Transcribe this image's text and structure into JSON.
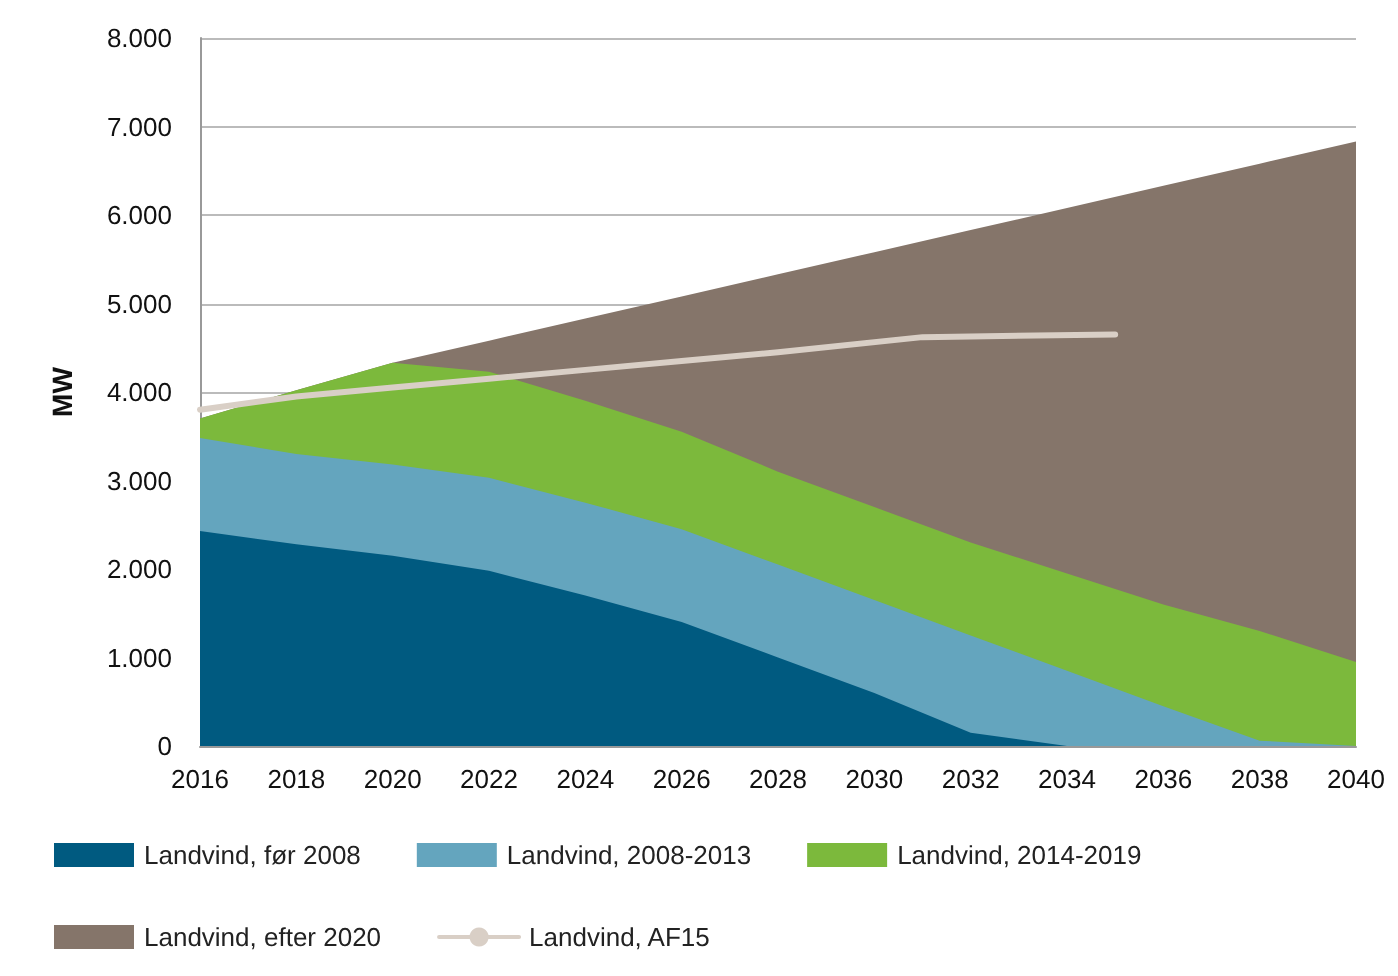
{
  "chart_data": {
    "type": "area",
    "stacked": true,
    "ylabel": "MW",
    "x": [
      2016,
      2018,
      2020,
      2022,
      2024,
      2026,
      2028,
      2030,
      2032,
      2034,
      2036,
      2038,
      2040
    ],
    "series": [
      {
        "name": "Landvind, før 2008",
        "color": "#005a80",
        "values": [
          2430,
          2280,
          2150,
          1980,
          1700,
          1400,
          1000,
          600,
          150,
          0,
          0,
          0,
          0
        ]
      },
      {
        "name": "Landvind, 2008-2013",
        "color": "#64a5be",
        "values": [
          1050,
          1020,
          1030,
          1050,
          1050,
          1050,
          1050,
          1050,
          1100,
          850,
          450,
          60,
          0
        ]
      },
      {
        "name": "Landvind, 2014-2019",
        "color": "#7cb93c",
        "values": [
          220,
          720,
          1150,
          1200,
          1150,
          1100,
          1050,
          1050,
          1050,
          1100,
          1150,
          1240,
          950
        ]
      },
      {
        "name": "Landvind, efter 2020",
        "color": "#85756a",
        "values": [
          0,
          0,
          0,
          350,
          930,
          1530,
          2230,
          2880,
          3530,
          4130,
          4730,
          5280,
          5880
        ]
      },
      {
        "name": "Landvind, AF15",
        "color": "#d9cfc6",
        "type": "line",
        "x": [
          2016,
          2018,
          2020,
          2022,
          2024,
          2026,
          2028,
          2031,
          2035
        ],
        "values": [
          3800,
          3950,
          4050,
          4150,
          4250,
          4350,
          4450,
          4620,
          4650
        ]
      }
    ],
    "xlim": [
      2016,
      2040
    ],
    "xticks": [
      2016,
      2018,
      2020,
      2022,
      2024,
      2026,
      2028,
      2030,
      2032,
      2034,
      2036,
      2038,
      2040
    ],
    "ylim": [
      0,
      8000
    ],
    "yticks": [
      {
        "value": 0,
        "label": "0"
      },
      {
        "value": 1000,
        "label": "1.000"
      },
      {
        "value": 2000,
        "label": "2.000"
      },
      {
        "value": 3000,
        "label": "3.000"
      },
      {
        "value": 4000,
        "label": "4.000"
      },
      {
        "value": 5000,
        "label": "5.000"
      },
      {
        "value": 6000,
        "label": "6.000"
      },
      {
        "value": 7000,
        "label": "7.000"
      },
      {
        "value": 8000,
        "label": "8.000"
      }
    ],
    "grid": "y",
    "legend": "bottom",
    "marker": "none",
    "line_style": "solid"
  }
}
